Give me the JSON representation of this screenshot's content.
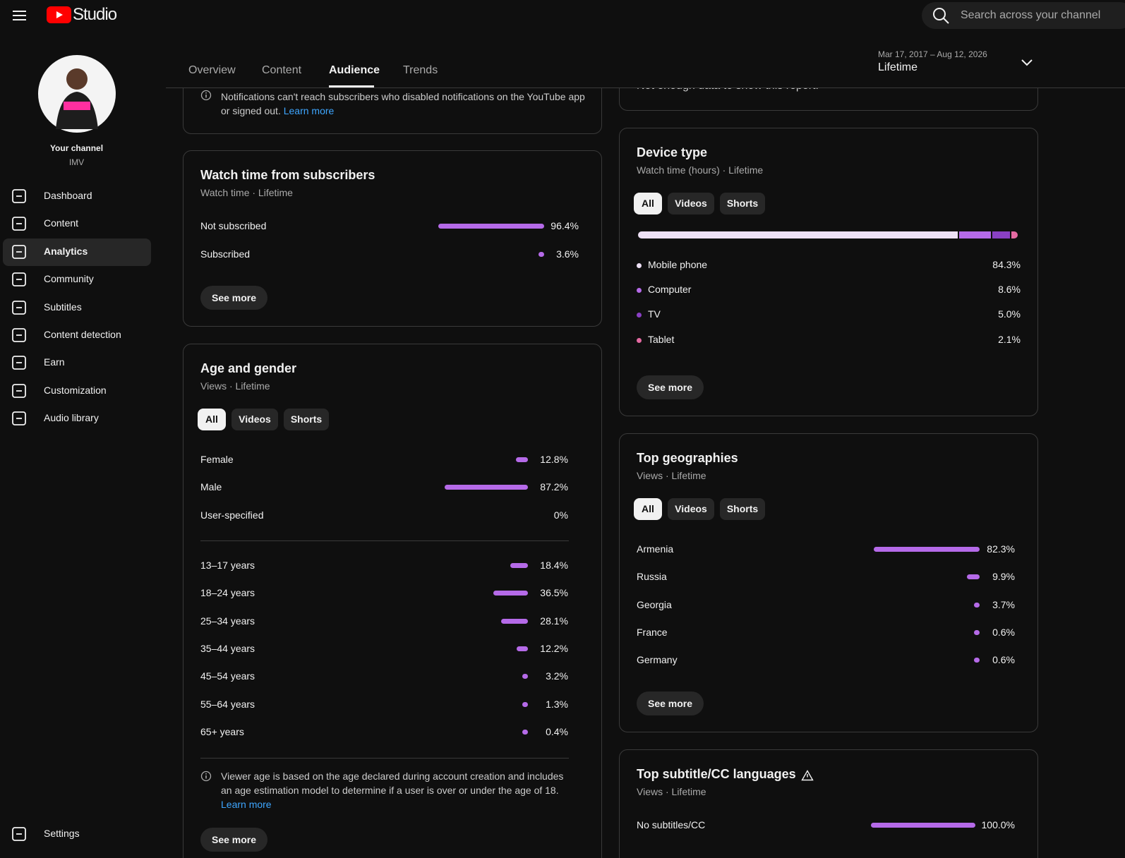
{
  "header": {
    "logo": "Studio",
    "search_placeholder": "Search across your channel"
  },
  "sidebar": {
    "channel_label": "Your channel",
    "channel_name": "IMV",
    "nav": [
      "Dashboard",
      "Content",
      "Analytics",
      "Community",
      "Subtitles",
      "Content detection",
      "Earn",
      "Customization",
      "Audio library"
    ],
    "settings": "Settings"
  },
  "tabs": [
    "Overview",
    "Content",
    "Audience",
    "Trends"
  ],
  "date_range": {
    "range": "Mar 17, 2017 – Aug 12, 2026",
    "label": "Lifetime"
  },
  "notification_card": {
    "text": "Notifications can't reach subscribers who disabled notifications on the YouTube app or signed out.",
    "link": "Learn more"
  },
  "top_right_card": {
    "text": "Not enough data to show this report."
  },
  "watch_time_card": {
    "title": "Watch time from subscribers",
    "subtitle": "Watch time · Lifetime",
    "rows": [
      {
        "label": "Not subscribed",
        "value": 96.4,
        "value_label": "96.4%"
      },
      {
        "label": "Subscribed",
        "value": 3.6,
        "value_label": "3.6%"
      }
    ],
    "button": "See more"
  },
  "age_gender_card": {
    "title": "Age and gender",
    "subtitle": "Views · Lifetime",
    "chips": [
      "All",
      "Videos",
      "Shorts"
    ],
    "gender_rows": [
      {
        "label": "Female",
        "value": 12.8,
        "value_label": "12.8%"
      },
      {
        "label": "Male",
        "value": 87.2,
        "value_label": "87.2%"
      },
      {
        "label": "User-specified",
        "value": 0,
        "value_label": "0%"
      }
    ],
    "age_rows": [
      {
        "label": "13–17 years",
        "value": 18.4,
        "value_label": "18.4%"
      },
      {
        "label": "18–24 years",
        "value": 36.5,
        "value_label": "36.5%"
      },
      {
        "label": "25–34 years",
        "value": 28.1,
        "value_label": "28.1%"
      },
      {
        "label": "35–44 years",
        "value": 12.2,
        "value_label": "12.2%"
      },
      {
        "label": "45–54 years",
        "value": 3.2,
        "value_label": "3.2%"
      },
      {
        "label": "55–64 years",
        "value": 1.3,
        "value_label": "1.3%"
      },
      {
        "label": "65+ years",
        "value": 0.4,
        "value_label": "0.4%"
      }
    ],
    "note": "Viewer age is based on the age declared during account creation and includes an age estimation model to determine if a user is over or under the age of 18.",
    "link": "Learn more",
    "button": "See more"
  },
  "device_card": {
    "title": "Device type",
    "subtitle": "Watch time (hours) · Lifetime",
    "chips": [
      "All",
      "Videos",
      "Shorts"
    ],
    "rows": [
      {
        "label": "Mobile phone",
        "value": 84.3,
        "value_label": "84.3%",
        "color": "#ede0f5"
      },
      {
        "label": "Computer",
        "value": 8.6,
        "value_label": "8.6%",
        "color": "#b56ae8"
      },
      {
        "label": "TV",
        "value": 5.0,
        "value_label": "5.0%",
        "color": "#8a40c4"
      },
      {
        "label": "Tablet",
        "value": 2.1,
        "value_label": "2.1%",
        "color": "#e46aa2"
      }
    ],
    "button": "See more"
  },
  "geo_card": {
    "title": "Top geographies",
    "subtitle": "Views · Lifetime",
    "chips": [
      "All",
      "Videos",
      "Shorts"
    ],
    "rows": [
      {
        "label": "Armenia",
        "value": 82.3,
        "value_label": "82.3%"
      },
      {
        "label": "Russia",
        "value": 9.9,
        "value_label": "9.9%"
      },
      {
        "label": "Georgia",
        "value": 3.7,
        "value_label": "3.7%"
      },
      {
        "label": "France",
        "value": 0.6,
        "value_label": "0.6%"
      },
      {
        "label": "Germany",
        "value": 0.6,
        "value_label": "0.6%"
      }
    ],
    "button": "See more"
  },
  "subtitle_card": {
    "title": "Top subtitle/CC languages",
    "subtitle": "Views · Lifetime",
    "rows": [
      {
        "label": "No subtitles/CC",
        "value": 100.0,
        "value_label": "100.0%"
      }
    ]
  }
}
